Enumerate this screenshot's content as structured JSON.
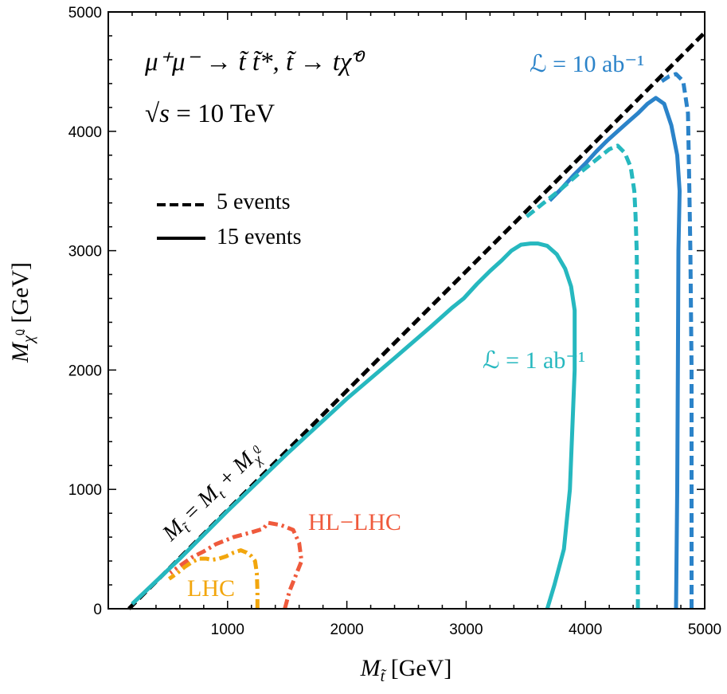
{
  "chart_data": {
    "type": "line",
    "xlabel": "M_t̃ [GeV]",
    "ylabel": "M_χ̃0 [GeV]",
    "xlim": [
      0,
      5000
    ],
    "ylim": [
      0,
      5000
    ],
    "xticks": [
      1000,
      2000,
      3000,
      4000,
      5000
    ],
    "yticks": [
      0,
      1000,
      2000,
      3000,
      4000,
      5000
    ],
    "grid": false,
    "annotations": {
      "process": "μ⁺μ⁻ → t̃ t̃*,  t̃ → tχ̃⁰",
      "energy": "√s = 10 TeV",
      "diagonal": "M_t̃ = M_t + M_χ̃0",
      "lumi_high": "ℒ = 10 ab⁻¹",
      "lumi_low": "ℒ = 1 ab⁻¹",
      "hl_lhc": "HL−LHC",
      "lhc": "LHC"
    },
    "legend": {
      "placement": "upper-left",
      "entries": [
        {
          "label": "5 events",
          "style": "dashed"
        },
        {
          "label": "15 events",
          "style": "solid"
        }
      ]
    },
    "series": [
      {
        "style": "dashed",
        "color": "#000000",
        "x": [
          173,
          5000
        ],
        "y": [
          0,
          4827
        ]
      },
      {
        "style": "solid",
        "color": "#2b83c9",
        "x": [
          4760,
          4770,
          4775,
          4780,
          4790,
          4770,
          4720,
          4660,
          4590,
          4520,
          4440,
          4360,
          4270,
          4180,
          4090,
          4000,
          3900,
          3800,
          3700
        ],
        "y": [
          0,
          1000,
          2000,
          3000,
          3500,
          3800,
          4050,
          4230,
          4280,
          4230,
          4150,
          4080,
          4000,
          3920,
          3830,
          3730,
          3630,
          3520,
          3420
        ],
        "shared_with_lower": "merges into diagonal band"
      },
      {
        "style": "dashed",
        "color": "#2b83c9",
        "x": [
          4890,
          4890,
          4890,
          4880,
          4870,
          4860,
          4820,
          4760,
          4700,
          4640
        ],
        "y": [
          0,
          1000,
          2000,
          3000,
          3600,
          4150,
          4420,
          4480,
          4460,
          4420
        ]
      },
      {
        "style": "solid",
        "color": "#26b8bf",
        "x": [
          3680,
          3740,
          3820,
          3870,
          3890,
          3910,
          3910,
          3880,
          3830,
          3760,
          3680,
          3600,
          3540,
          3460,
          3380,
          3300,
          3200,
          3090,
          2980,
          2880,
          2700,
          2400,
          2000,
          1500,
          1000,
          600,
          200
        ],
        "y": [
          0,
          200,
          500,
          1000,
          1500,
          2000,
          2500,
          2700,
          2850,
          2970,
          3040,
          3060,
          3060,
          3050,
          3000,
          2920,
          2830,
          2720,
          2600,
          2520,
          2360,
          2100,
          1760,
          1300,
          820,
          420,
          40
        ]
      },
      {
        "style": "dashed",
        "color": "#26b8bf",
        "x": [
          4440,
          4440,
          4440,
          4430,
          4420,
          4410,
          4380,
          4330,
          4270,
          4200,
          4100,
          3950,
          3800,
          3650,
          3500
        ],
        "y": [
          0,
          1000,
          2000,
          3000,
          3300,
          3500,
          3700,
          3820,
          3880,
          3850,
          3770,
          3650,
          3520,
          3400,
          3280
        ]
      },
      {
        "style": "dashdot",
        "color": "#ef5a3c",
        "label": "HL−LHC",
        "x": [
          1480,
          1520,
          1580,
          1620,
          1600,
          1550,
          1450,
          1340,
          1300,
          1200,
          1050,
          900,
          800,
          700,
          600,
          520
        ],
        "y": [
          0,
          150,
          300,
          400,
          550,
          660,
          700,
          720,
          670,
          640,
          600,
          540,
          480,
          430,
          360,
          300
        ]
      },
      {
        "style": "dashdot",
        "color": "#f2a60d",
        "label": "LHC",
        "x": [
          1250,
          1250,
          1245,
          1230,
          1200,
          1160,
          1110,
          1050,
          990,
          930,
          870,
          820,
          760,
          700,
          640,
          580,
          510
        ],
        "y": [
          0,
          150,
          300,
          400,
          440,
          470,
          490,
          470,
          440,
          420,
          410,
          420,
          420,
          390,
          350,
          300,
          250
        ]
      }
    ]
  }
}
